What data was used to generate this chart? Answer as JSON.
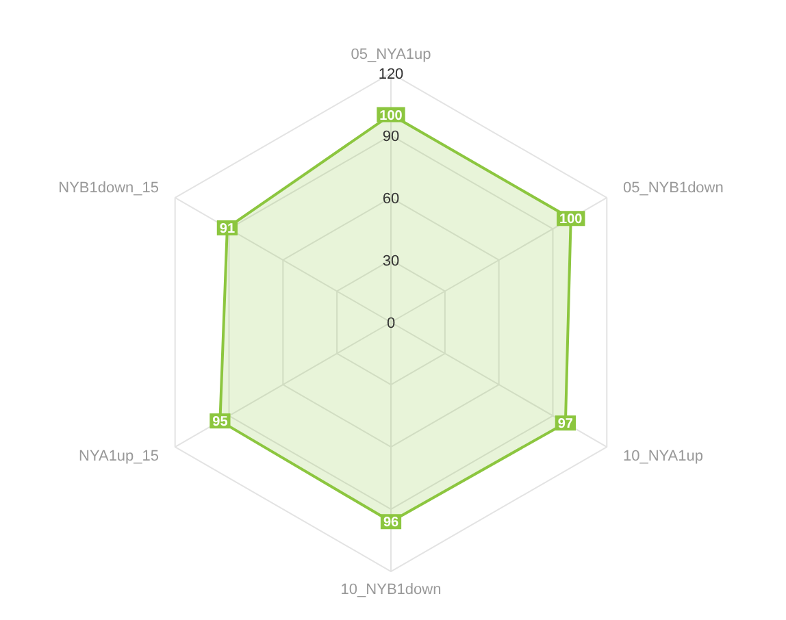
{
  "chart_data": {
    "type": "radar",
    "categories": [
      "05_NYA1up",
      "05_NYB1down",
      "10_NYA1up",
      "10_NYB1down",
      "NYA1up_15",
      "NYB1down_15"
    ],
    "series": [
      {
        "color": "#8cc63f",
        "values": [
          100,
          100,
          97,
          96,
          95,
          91
        ]
      }
    ],
    "ylim": [
      0,
      120
    ],
    "yticks": [
      0,
      30,
      60,
      90,
      120
    ],
    "grid": true,
    "data_labels": true
  }
}
